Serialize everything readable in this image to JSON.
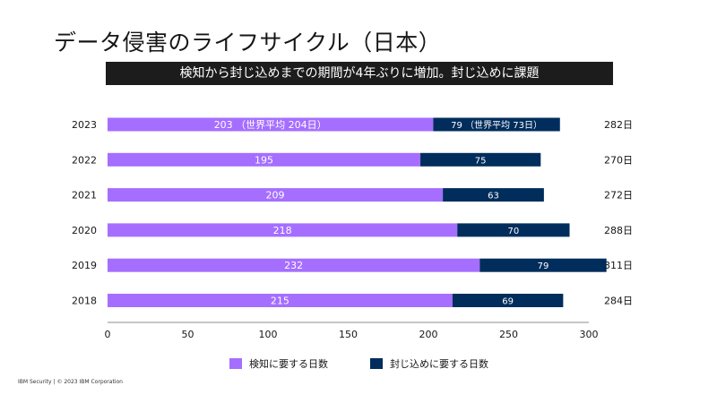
{
  "title": "データ侵害のライフサイクル（日本）",
  "banner": "検知から封じ込めまでの期間が4年ぶりに増加。封じ込めに課題",
  "footer": "IBM Security | © 2023 IBM Corporation",
  "colors": {
    "detect": "#a56eff",
    "contain": "#002d5c"
  },
  "chart_data": {
    "type": "bar",
    "orientation": "horizontal",
    "stacked": true,
    "categories": [
      "2023",
      "2022",
      "2021",
      "2020",
      "2019",
      "2018"
    ],
    "series": [
      {
        "name": "検知に要する日数",
        "values": [
          203,
          195,
          209,
          218,
          232,
          215
        ],
        "labels": [
          "203 （世界平均 204日）",
          "195",
          "209",
          "218",
          "232",
          "215"
        ]
      },
      {
        "name": "封じ込めに要する日数",
        "values": [
          79,
          75,
          63,
          70,
          79,
          69
        ],
        "labels": [
          "79 （世界平均 73日）",
          "75",
          "63",
          "70",
          "79",
          "69"
        ]
      }
    ],
    "totals": [
      "282日",
      "270日",
      "272日",
      "288日",
      "311日",
      "284日"
    ],
    "xlim": [
      0,
      300
    ],
    "xticks": [
      "0",
      "50",
      "100",
      "150",
      "200",
      "250",
      "300"
    ],
    "legend_position": "bottom-center",
    "grid": false
  }
}
